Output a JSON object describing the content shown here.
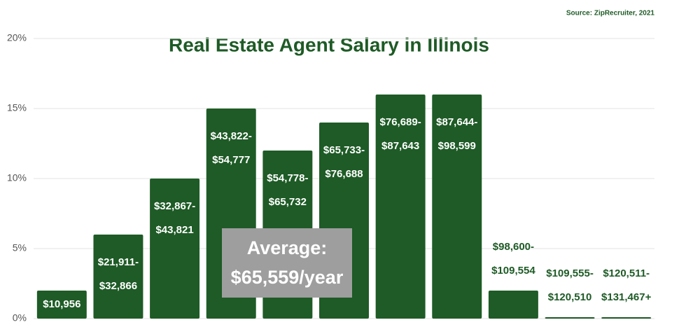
{
  "chart_data": {
    "type": "bar",
    "title": "Real Estate Agent Salary in Illinois",
    "source": "Source: ZipRecruiter, 2021",
    "annotation": [
      "Average:",
      "$65,559/year"
    ],
    "categories": [
      [
        "$10,956"
      ],
      [
        "$21,911-",
        "$32,866"
      ],
      [
        "$32,867-",
        "$43,821"
      ],
      [
        "$43,822-",
        "$54,777"
      ],
      [
        "$54,778-",
        "$65,732"
      ],
      [
        "$65,733-",
        "$76,688"
      ],
      [
        "$76,689-",
        "$87,643"
      ],
      [
        "$87,644-",
        "$98,599"
      ],
      [
        "$98,600-",
        "$109,554"
      ],
      [
        "$109,555-",
        "$120,510"
      ],
      [
        "$120,511-",
        "$131,467+"
      ]
    ],
    "values": [
      2,
      6,
      10,
      15,
      12,
      14,
      16,
      16,
      2,
      0.1,
      0.1
    ],
    "color": "#1e5b26",
    "ylim": [
      0,
      20
    ],
    "yticks": [
      {
        "value": 0,
        "label": "0%"
      },
      {
        "value": 5,
        "label": "5%"
      },
      {
        "value": 10,
        "label": "10%"
      },
      {
        "value": 15,
        "label": "15%"
      },
      {
        "value": 20,
        "label": "20%"
      }
    ],
    "grid": true
  }
}
